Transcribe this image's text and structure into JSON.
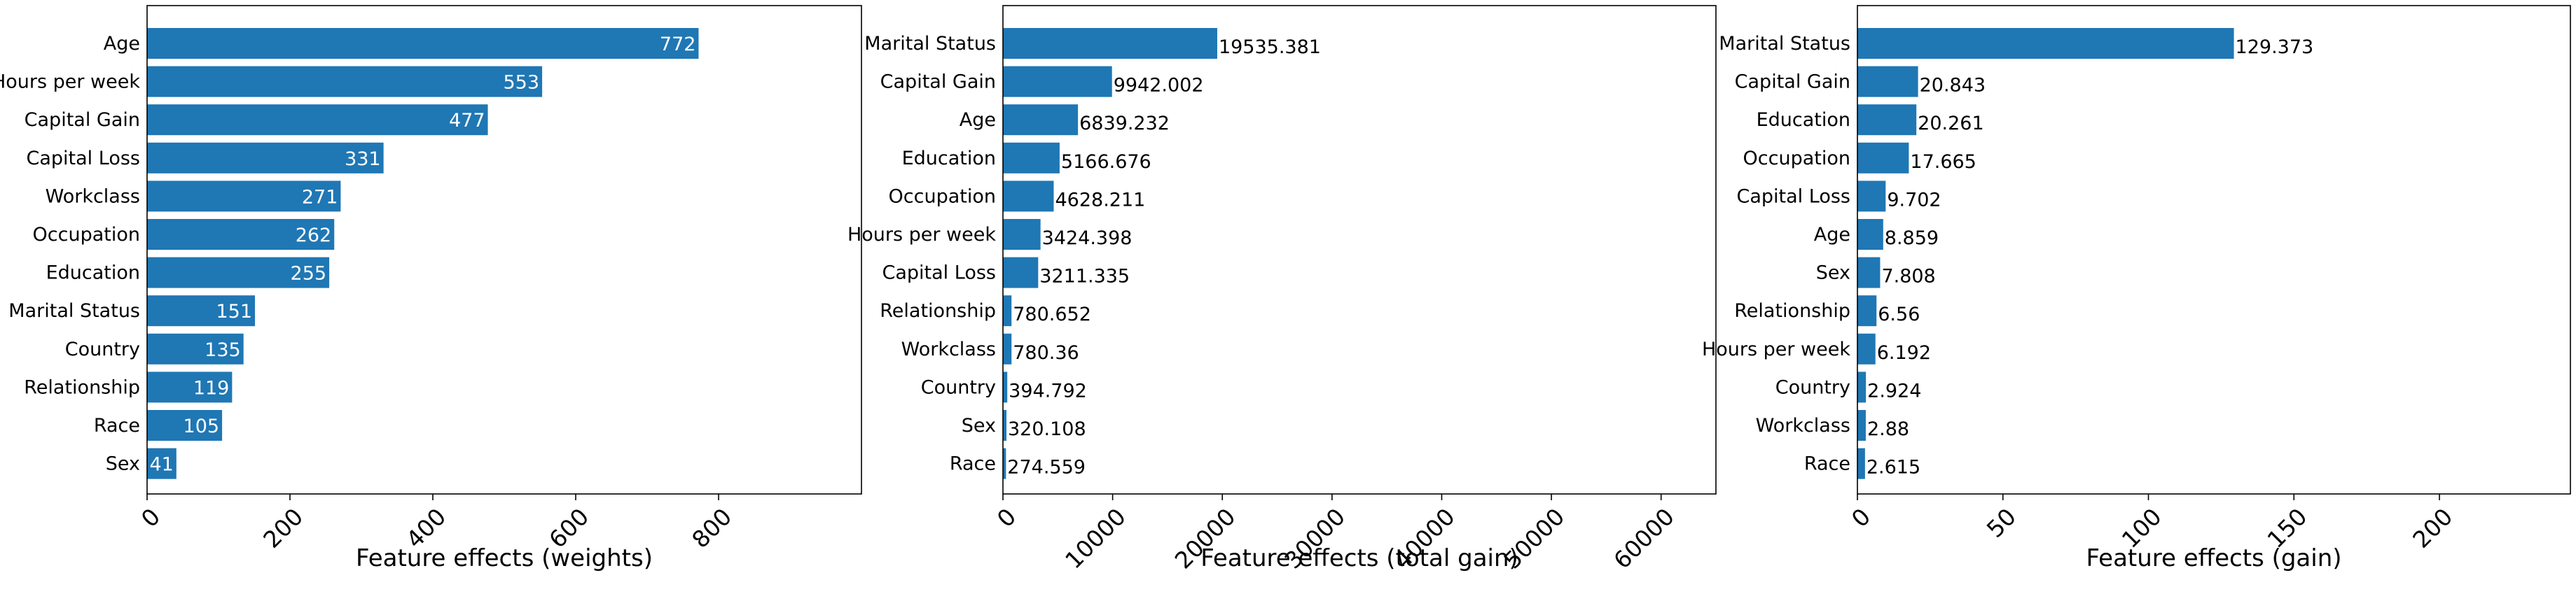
{
  "chart_data": [
    {
      "type": "bar",
      "orientation": "horizontal",
      "xlabel": "Feature effects (weights)",
      "xlim": [
        0,
        1000
      ],
      "xticks": [
        0,
        200,
        400,
        600,
        800
      ],
      "label_position": "inside",
      "categories": [
        "Age",
        "Hours per week",
        "Capital Gain",
        "Capital Loss",
        "Workclass",
        "Occupation",
        "Education",
        "Marital Status",
        "Country",
        "Relationship",
        "Race",
        "Sex"
      ],
      "values": [
        772,
        553,
        477,
        331,
        271,
        262,
        255,
        151,
        135,
        119,
        105,
        41
      ],
      "value_labels": [
        "772",
        "553",
        "477",
        "331",
        "271",
        "262",
        "255",
        "151",
        "135",
        "119",
        "105",
        "41"
      ],
      "bar_color": "#1f77b4",
      "grid": false
    },
    {
      "type": "bar",
      "orientation": "horizontal",
      "xlabel": "Feature effects (total gain)",
      "xlim": [
        0,
        65000
      ],
      "xticks": [
        0,
        10000,
        20000,
        30000,
        40000,
        50000,
        60000
      ],
      "label_position": "outside",
      "categories": [
        "Marital Status",
        "Capital Gain",
        "Age",
        "Education",
        "Occupation",
        "Hours per week",
        "Capital Loss",
        "Relationship",
        "Workclass",
        "Country",
        "Sex",
        "Race"
      ],
      "values": [
        19535.381,
        9942.002,
        6839.232,
        5166.676,
        4628.211,
        3424.398,
        3211.335,
        780.652,
        780.36,
        394.792,
        320.108,
        274.559
      ],
      "value_labels": [
        "19535.381",
        "9942.002",
        "6839.232",
        "5166.676",
        "4628.211",
        "3424.398",
        "3211.335",
        "780.652",
        "780.36",
        "394.792",
        "320.108",
        "274.559"
      ],
      "bar_color": "#1f77b4",
      "grid": false
    },
    {
      "type": "bar",
      "orientation": "horizontal",
      "xlabel": "Feature effects (gain)",
      "xlim": [
        0,
        245
      ],
      "xticks": [
        0,
        50,
        100,
        150,
        200
      ],
      "label_position": "outside",
      "categories": [
        "Marital Status",
        "Capital Gain",
        "Education",
        "Occupation",
        "Capital Loss",
        "Age",
        "Sex",
        "Relationship",
        "Hours per week",
        "Country",
        "Workclass",
        "Race"
      ],
      "values": [
        129.373,
        20.843,
        20.261,
        17.665,
        9.702,
        8.859,
        7.808,
        6.56,
        6.192,
        2.924,
        2.88,
        2.615
      ],
      "value_labels": [
        "129.373",
        "20.843",
        "20.261",
        "17.665",
        "9.702",
        "8.859",
        "7.808",
        "6.56",
        "6.192",
        "2.924",
        "2.88",
        "2.615"
      ],
      "bar_color": "#1f77b4",
      "grid": false
    }
  ]
}
